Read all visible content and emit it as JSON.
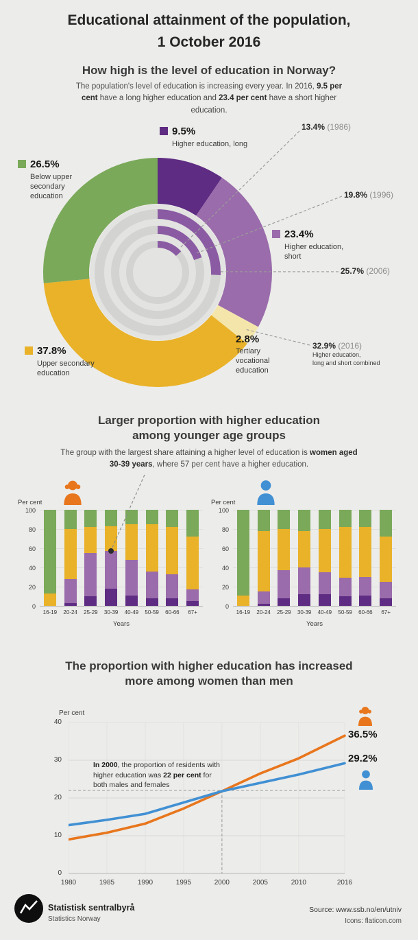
{
  "colors": {
    "purple_dark": "#5e2c82",
    "purple": "#9a6cab",
    "ring_purple": "#8a5ba3",
    "gold": "#e9b229",
    "pale_yellow": "#f4e6ab",
    "green": "#7aa95a",
    "orange": "#e8761d",
    "blue": "#4190d3",
    "background": "#ececea"
  },
  "header": {
    "title_line1": "Educational attainment of the population,",
    "title_line2": "1 October 2016"
  },
  "section_donut": {
    "heading": "How high is the level of education in Norway?",
    "intro_seg1": "The population's level of education is increasing every year. In 2016, ",
    "intro_seg2": "9.5 per cent",
    "intro_seg3": " have a long higher education and ",
    "intro_seg4": "23.4 per cent",
    "intro_seg5": " have a short higher education.",
    "labels": {
      "long_value": "9.5%",
      "long_label": "Higher education, long",
      "short_value": "23.4%",
      "short_label": "Higher education, short",
      "tertiary_value": "2.8%",
      "tertiary_label": "Tertiary vocational education",
      "upper_value": "37.8%",
      "upper_label": "Upper secondary education",
      "below_value": "26.5%",
      "below_label": "Below upper secondary education",
      "hist_1986_value": "13.4%",
      "hist_1986_year": " (1986)",
      "hist_1996_value": "19.8%",
      "hist_1996_year": " (1996)",
      "hist_2006_value": "25.7%",
      "hist_2006_year": " (2006)",
      "hist_2016_value": "32.9%",
      "hist_2016_year": " (2016)",
      "hist_2016_note1": "Higher education,",
      "hist_2016_note2": "long and short combined"
    }
  },
  "section_bars": {
    "heading_line1": "Larger proportion with higher education",
    "heading_line2": "among younger age groups",
    "intro_seg1": "The group with the largest share attaining a higher level of education is ",
    "intro_seg2": "women aged 30-39 years",
    "intro_seg3": ", where 57 per cent have a higher education.",
    "ylabel": "Per cent",
    "xlabel": "Years"
  },
  "section_line": {
    "heading_line1": "The proportion with higher education has increased",
    "heading_line2": "more among women than men",
    "ylabel": "Per cent",
    "note_seg1": "In 2000",
    "note_seg2": ", the proportion of residents with higher education was ",
    "note_seg3": "22 per cent",
    "note_seg4": " for both males and females"
  },
  "footer": {
    "org_name": "Statistisk sentralbyrå",
    "org_name_en": "Statistics Norway",
    "source": "Source: www.ssb.no/en/utniv",
    "icons_credit": "Icons: flaticon.com"
  },
  "chart_data": [
    {
      "type": "pie",
      "title": "Educational attainment of the population, 1 October 2016",
      "slices": [
        {
          "label": "Higher education, long",
          "value": 9.5,
          "color": "#5e2c82"
        },
        {
          "label": "Higher education, short",
          "value": 23.4,
          "color": "#9a6cab"
        },
        {
          "label": "Tertiary vocational education",
          "value": 2.8,
          "color": "#f4e6ab"
        },
        {
          "label": "Upper secondary education",
          "value": 37.8,
          "color": "#e9b229"
        },
        {
          "label": "Below upper secondary education",
          "value": 26.5,
          "color": "#7aa95a"
        }
      ],
      "inner_rings": [
        {
          "year": 2006,
          "label": "25.7% (2006)",
          "value": 25.7
        },
        {
          "year": 1996,
          "label": "19.8% (1996)",
          "value": 19.8
        },
        {
          "year": 1986,
          "label": "13.4% (1986)",
          "value": 13.4
        }
      ],
      "combined_2016": {
        "label": "32.9% (2016)",
        "value": 32.9,
        "note": "Higher education, long and short combined"
      }
    },
    {
      "type": "bar",
      "stacked": true,
      "title": "Women",
      "categories": [
        "16-19",
        "20-24",
        "25-29",
        "30-39",
        "40-49",
        "50-59",
        "60-66",
        "67+"
      ],
      "series": [
        {
          "name": "Higher education, long",
          "color": "#5e2c82",
          "values": [
            0,
            3,
            10,
            18,
            11,
            8,
            8,
            5
          ]
        },
        {
          "name": "Higher education, short",
          "color": "#9a6cab",
          "values": [
            0,
            25,
            45,
            39,
            37,
            28,
            25,
            12
          ]
        },
        {
          "name": "Upper secondary education",
          "color": "#e9b229",
          "values": [
            13,
            52,
            27,
            26,
            37,
            49,
            49,
            55
          ]
        },
        {
          "name": "Below upper secondary education",
          "color": "#7aa95a",
          "values": [
            87,
            20,
            18,
            17,
            15,
            15,
            18,
            28
          ]
        }
      ],
      "ylabel": "Per cent",
      "xlabel": "Years",
      "yticks": [
        0,
        20,
        40,
        60,
        80,
        100
      ],
      "ylim": [
        0,
        100
      ],
      "annotation": {
        "category": "30-39",
        "value": 57
      }
    },
    {
      "type": "bar",
      "stacked": true,
      "title": "Men",
      "categories": [
        "16-19",
        "20-24",
        "25-29",
        "30-39",
        "40-49",
        "50-59",
        "60-66",
        "67+"
      ],
      "series": [
        {
          "name": "Higher education, long",
          "color": "#5e2c82",
          "values": [
            0,
            2,
            8,
            12,
            12,
            10,
            11,
            8
          ]
        },
        {
          "name": "Higher education, short",
          "color": "#9a6cab",
          "values": [
            0,
            13,
            29,
            28,
            23,
            19,
            19,
            17
          ]
        },
        {
          "name": "Upper secondary education",
          "color": "#e9b229",
          "values": [
            11,
            63,
            43,
            38,
            45,
            53,
            52,
            47
          ]
        },
        {
          "name": "Below upper secondary education",
          "color": "#7aa95a",
          "values": [
            89,
            22,
            20,
            22,
            20,
            18,
            18,
            28
          ]
        }
      ],
      "ylabel": "Per cent",
      "xlabel": "Years",
      "yticks": [
        0,
        20,
        40,
        60,
        80,
        100
      ],
      "ylim": [
        0,
        100
      ]
    },
    {
      "type": "line",
      "title": "The proportion with higher education has increased more among women than men",
      "x": [
        1980,
        1985,
        1990,
        1995,
        2000,
        2005,
        2010,
        2016
      ],
      "series": [
        {
          "name": "Women",
          "color": "#e8761d",
          "values": [
            9,
            10.8,
            13.2,
            17.2,
            21.8,
            26.5,
            30.5,
            36.5
          ],
          "end_label": "36.5%"
        },
        {
          "name": "Men",
          "color": "#4190d3",
          "values": [
            12.8,
            14.2,
            15.8,
            18.8,
            21.8,
            24,
            26.2,
            29.2
          ],
          "end_label": "29.2%"
        }
      ],
      "ylabel": "Per cent",
      "yticks": [
        0,
        10,
        20,
        30,
        40
      ],
      "xticks": [
        1980,
        1985,
        1990,
        1995,
        2000,
        2005,
        2010,
        2016
      ],
      "ylim": [
        0,
        40
      ],
      "annotation": {
        "x": 2000,
        "y": 22,
        "text": "In 2000, the proportion of residents with higher education was 22 per cent for both males and females"
      }
    }
  ]
}
